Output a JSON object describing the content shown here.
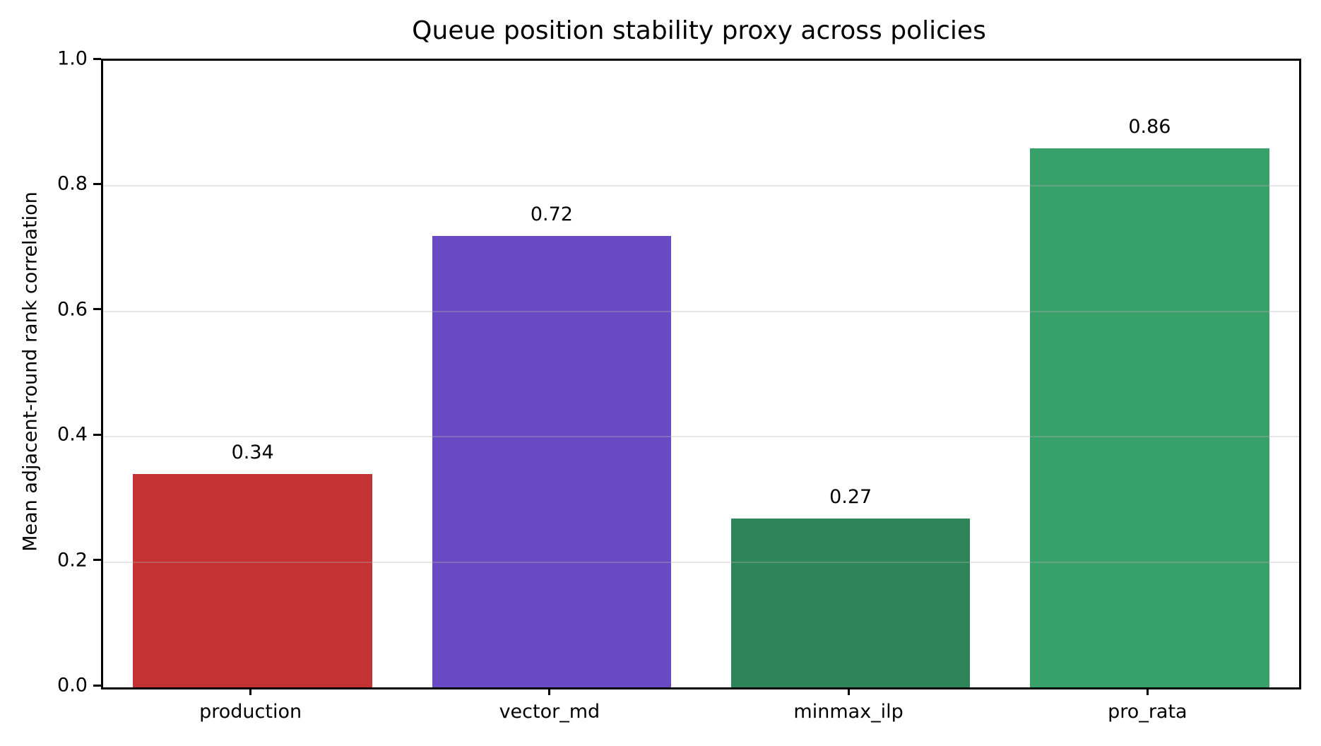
{
  "chart_data": {
    "type": "bar",
    "title": "Queue position stability proxy across policies",
    "xlabel": "",
    "ylabel": "Mean adjacent-round rank correlation",
    "categories": [
      "production",
      "vector_md",
      "minmax_ilp",
      "pro_rata"
    ],
    "values": [
      0.34,
      0.72,
      0.27,
      0.86
    ],
    "value_labels": [
      "0.34",
      "0.72",
      "0.27",
      "0.86"
    ],
    "bar_colors": [
      "#c43332",
      "#6a4ac4",
      "#2e8557",
      "#38a169"
    ],
    "ylim": [
      0.0,
      1.0
    ],
    "yticks": [
      "0.0",
      "0.2",
      "0.4",
      "0.6",
      "0.8",
      "1.0"
    ],
    "bar_width_fraction": 0.8,
    "grid": "horizontal gridlines at 0.2 intervals, light gray, drawn over bars",
    "gridline_color": "#e7e7e7",
    "legend": "none",
    "spines": "full box, black",
    "background_color": "#ffffff",
    "text_color": "#000000"
  }
}
